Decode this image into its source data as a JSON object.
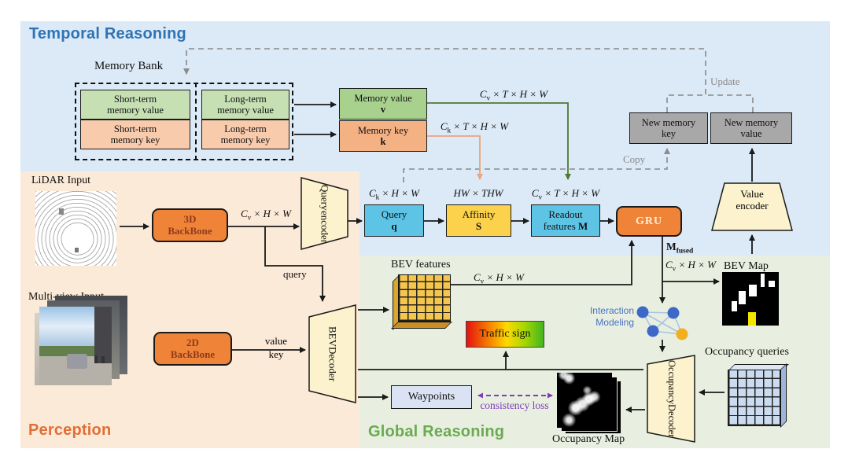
{
  "regions": {
    "temporal": {
      "title": "Temporal Reasoning",
      "bg": "#dce9f6",
      "title_color": "#2e74b5"
    },
    "perception": {
      "title": "Perception",
      "bg": "#fcead9",
      "title_color": "#e06f35"
    },
    "global": {
      "title": "Global Reasoning",
      "bg": "#e9efe0",
      "title_color": "#6aaa50"
    }
  },
  "memory_bank": {
    "label": "Memory Bank",
    "short_value": [
      "Short-term",
      "memory value"
    ],
    "short_key": [
      "Short-term",
      "memory key"
    ],
    "long_value": [
      "Long-term",
      "memory value"
    ],
    "long_key": [
      "Long-term",
      "memory key"
    ]
  },
  "memory_value": {
    "label": "Memory value",
    "symbol": "v",
    "color": "#a9d18e"
  },
  "memory_key": {
    "label": "Memory key",
    "symbol": "k",
    "color": "#f4b183"
  },
  "blocks": {
    "query_encoder": [
      "Query",
      "encoder"
    ],
    "value_encoder": [
      "Value",
      "encoder"
    ],
    "bev_decoder": [
      "BEV",
      "Decoder"
    ],
    "occupancy_decoder": [
      "Occupancy",
      "Decoder"
    ],
    "backbone3d": [
      "3D",
      "BackBone"
    ],
    "backbone2d": [
      "2D",
      "BackBone"
    ],
    "query": {
      "l1": "Query",
      "l2": "q"
    },
    "affinity": {
      "l1": "Affinity",
      "l2": "S"
    },
    "readout": {
      "l1": "Readout",
      "l2": "features ",
      "l2b": "M"
    },
    "gru": "GRU",
    "new_memory_key": [
      "New memory",
      "key"
    ],
    "new_memory_value": [
      "New memory",
      "value"
    ],
    "waypoints": "Waypoints",
    "traffic_sign": "Traffic sign"
  },
  "wires": {
    "mem_value_dim": "C_v × T × H × W",
    "mem_key_dim": "C_k × T × H × W",
    "query_dim": "C_k × H × W",
    "affinity_dim": "HW × THW",
    "readout_dim": "C_v × T × H × W",
    "backbone3d_dim": "C_v × H × W",
    "bev_dim": "C_v × H × W",
    "mfused_dim": "C_v × H × W",
    "mfused": "M_fused",
    "copy": "Copy",
    "update": "Update",
    "query": "query",
    "value": "value",
    "key": "key",
    "consistency": "consistency loss"
  },
  "labels": {
    "lidar": "LiDAR Input",
    "multiview": "Multi-view Input",
    "bev_features": "BEV features",
    "bev_map": "BEV Map",
    "occupancy_map": "Occupancy Map",
    "occupancy_queries": "Occupancy queries",
    "interaction": [
      "Interaction",
      "Modeling"
    ]
  },
  "colors": {
    "green_box": "#c6e0b4",
    "salmon_box": "#f8cbad",
    "green_dark_box": "#a9d18e",
    "salmon_dark_box": "#f4b183",
    "blue_box": "#5ec4e6",
    "yellow_box": "#fcd14b",
    "orange_block": "#ef8439",
    "cream_trapezoid": "#fcf2cd",
    "gray_box": "#a8a8a8",
    "waypoints_box": "#dbe2f4",
    "green_wire": "#4e7a2e",
    "salmon_wire": "#f0a278",
    "purple": "#7d3bbd",
    "interaction_blue": "#4472c4",
    "node_yellow": "#f2b01e"
  }
}
